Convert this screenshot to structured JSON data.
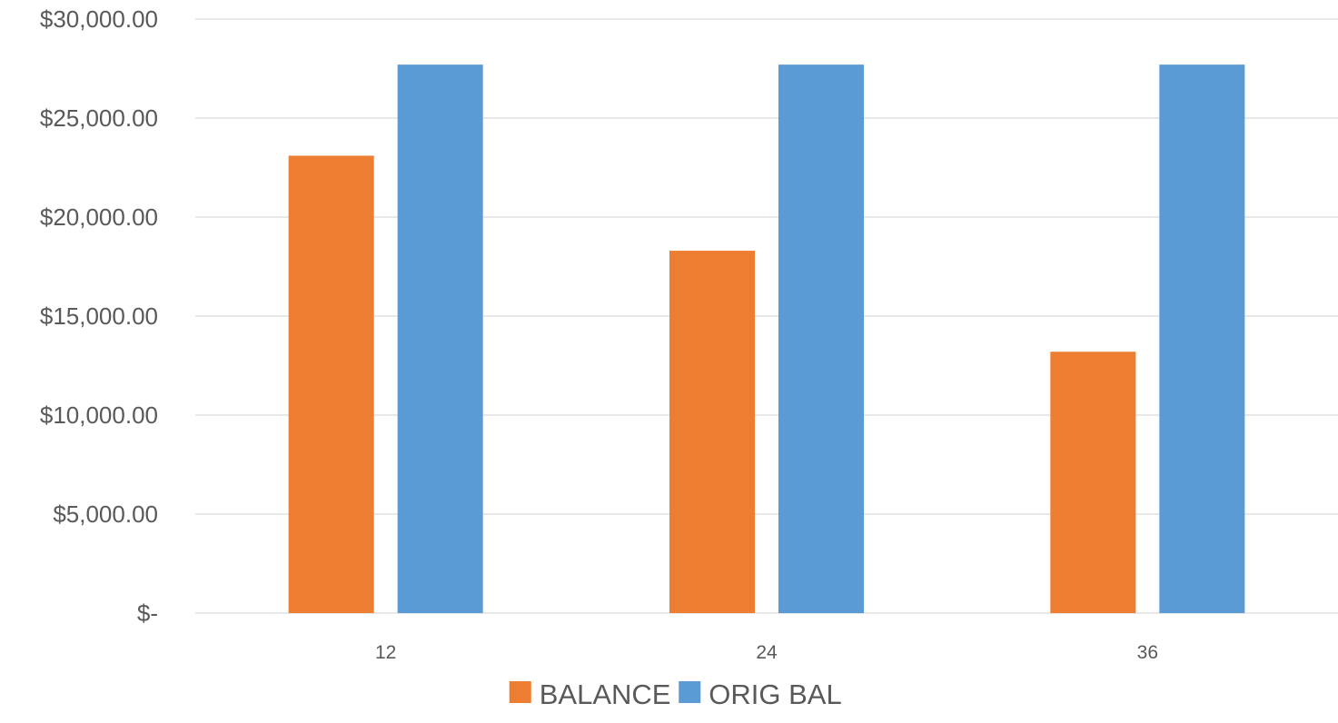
{
  "chart_data": {
    "type": "bar",
    "categories": [
      "12",
      "24",
      "36"
    ],
    "series": [
      {
        "name": "BALANCE",
        "values": [
          23100,
          18300,
          13200
        ],
        "color": "#ed7d31"
      },
      {
        "name": "ORIG BAL",
        "values": [
          27700,
          27700,
          27700
        ],
        "color": "#5b9bd5"
      }
    ],
    "ylim": [
      0,
      30000
    ],
    "yticks": [
      {
        "value": 0,
        "label": "$-"
      },
      {
        "value": 5000,
        "label": "$5,000.00"
      },
      {
        "value": 10000,
        "label": "$10,000.00"
      },
      {
        "value": 15000,
        "label": "$15,000.00"
      },
      {
        "value": 20000,
        "label": "$20,000.00"
      },
      {
        "value": 25000,
        "label": "$25,000.00"
      },
      {
        "value": 30000,
        "label": "$30,000.00"
      }
    ],
    "grid": true,
    "legend_position": "bottom",
    "title": "",
    "xlabel": "",
    "ylabel": ""
  }
}
